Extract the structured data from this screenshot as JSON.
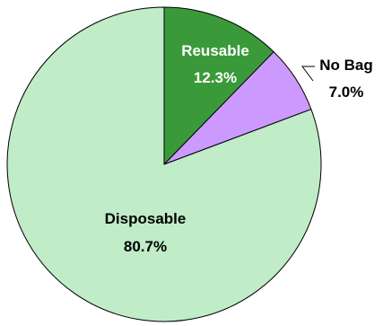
{
  "chart_data": {
    "type": "pie",
    "title": "",
    "slices": [
      {
        "label": "Reusable",
        "value": 12.3,
        "value_label": "12.3%",
        "color": "#3a9a3a",
        "text_color": "#ffffff",
        "label_placement": "inside"
      },
      {
        "label": "No Bag",
        "value": 7.0,
        "value_label": "7.0%",
        "color": "#cc99ff",
        "text_color": "#000000",
        "label_placement": "outside"
      },
      {
        "label": "Disposable",
        "value": 80.7,
        "value_label": "80.7%",
        "color": "#c0ecc8",
        "text_color": "#000000",
        "label_placement": "inside"
      }
    ],
    "start_angle": "12 o'clock",
    "direction": "clockwise",
    "legend": "none"
  }
}
